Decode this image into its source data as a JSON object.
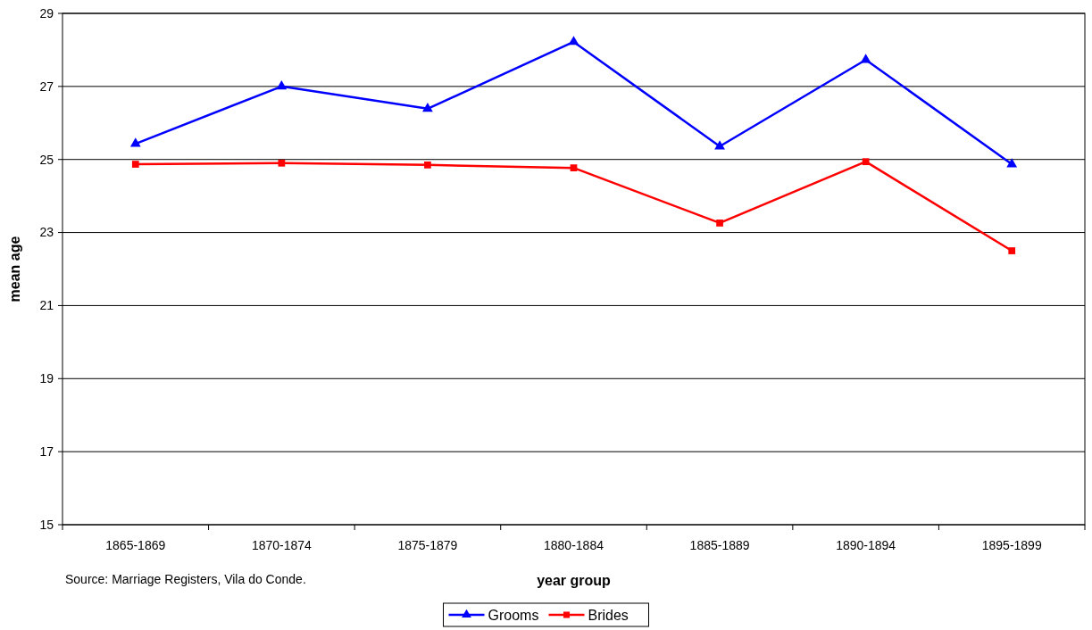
{
  "chart_data": {
    "type": "line",
    "xlabel": "year group",
    "ylabel": "mean age",
    "categories": [
      "1865-1869",
      "1870-1874",
      "1875-1879",
      "1880-1884",
      "1885-1889",
      "1890-1894",
      "1895-1899"
    ],
    "series": [
      {
        "name": "Grooms",
        "color": "#0000ff",
        "marker": "triangle",
        "values": [
          25.43,
          27.0,
          26.39,
          28.22,
          25.36,
          27.73,
          24.87
        ]
      },
      {
        "name": "Brides",
        "color": "#ff0000",
        "marker": "square",
        "values": [
          24.87,
          24.9,
          24.85,
          24.77,
          23.26,
          24.94,
          22.5
        ]
      }
    ],
    "ylim": [
      15,
      29
    ],
    "yticks": [
      15,
      17,
      19,
      21,
      23,
      25,
      27,
      29
    ],
    "grid": "y",
    "legend": "bottom",
    "annotations": [
      "Source: Marriage Registers, Vila do Conde."
    ]
  }
}
